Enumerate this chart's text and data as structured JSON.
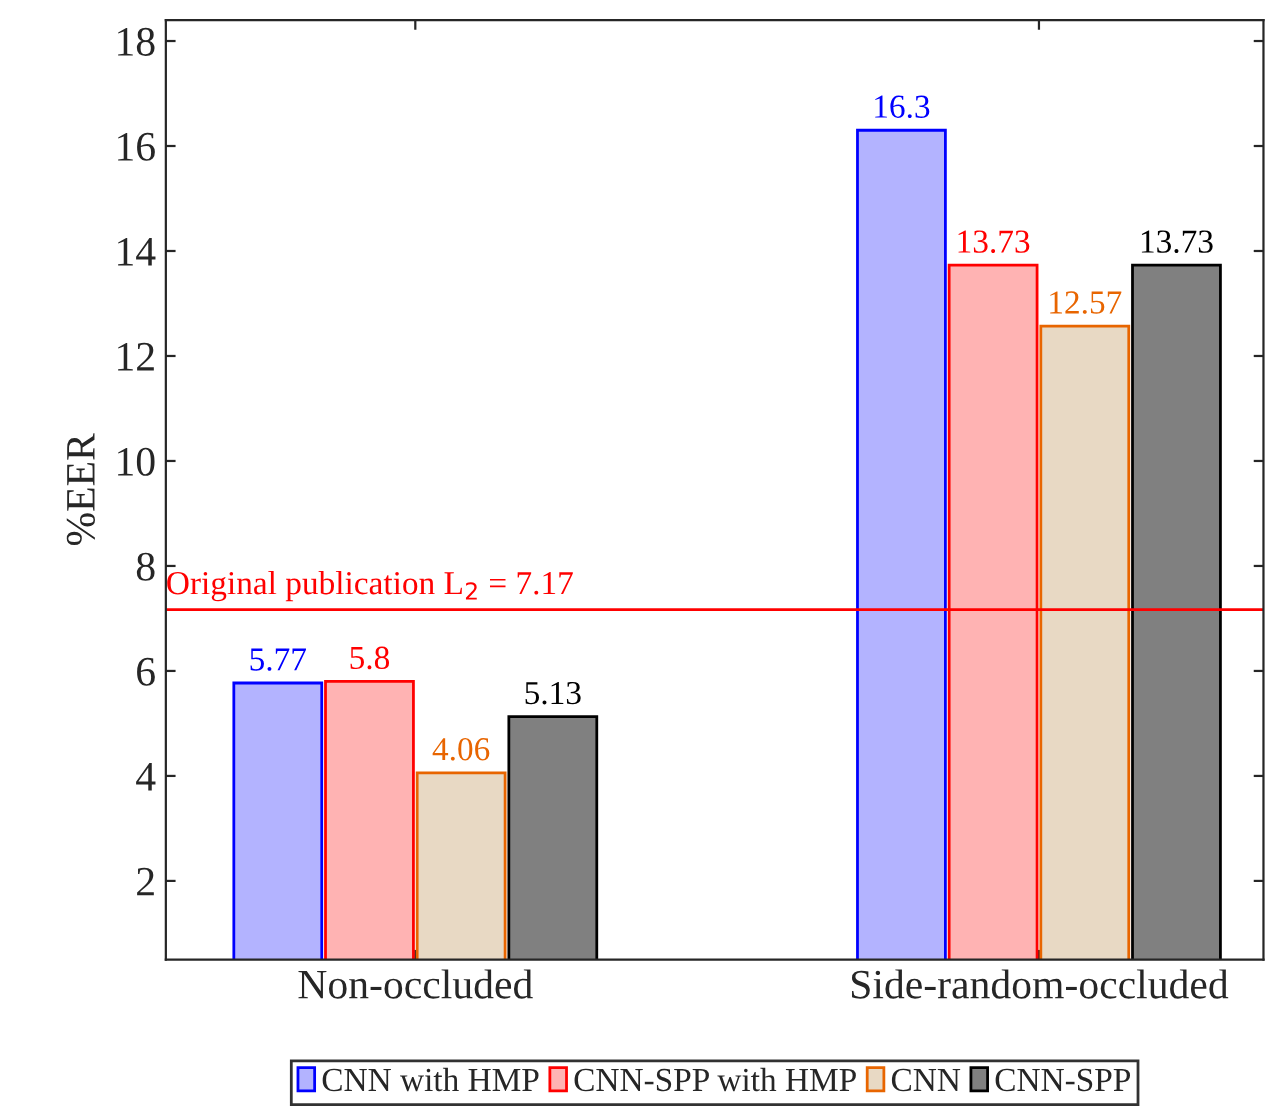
{
  "chart_data": {
    "type": "bar",
    "ylabel": "%EER",
    "categories": [
      "Non-occluded",
      "Side-random-occluded"
    ],
    "series": [
      {
        "name": "CNN with HMP",
        "color": "#b3b3ff",
        "values": [
          5.77,
          16.3
        ]
      },
      {
        "name": "CNN-SPP with HMP",
        "color": "#ffb3b3",
        "values": [
          5.8,
          13.73
        ]
      },
      {
        "name": "CNN",
        "color": "#e8d9c4",
        "values": [
          4.06,
          12.57
        ]
      },
      {
        "name": "CNN-SPP",
        "color": "#808080",
        "values": [
          5.13,
          13.73
        ]
      }
    ],
    "ylim": [
      0.5,
      18.4
    ],
    "yticks": [
      2,
      4,
      6,
      8,
      10,
      12,
      14,
      16,
      18
    ],
    "ref_lines": [
      {
        "axis": "y",
        "value": 7.17,
        "label": "Original publication L$_{2}$ = 7.17",
        "color": "#ff0000"
      }
    ],
    "data_labels": true,
    "legend": "bottom",
    "grid": false
  }
}
